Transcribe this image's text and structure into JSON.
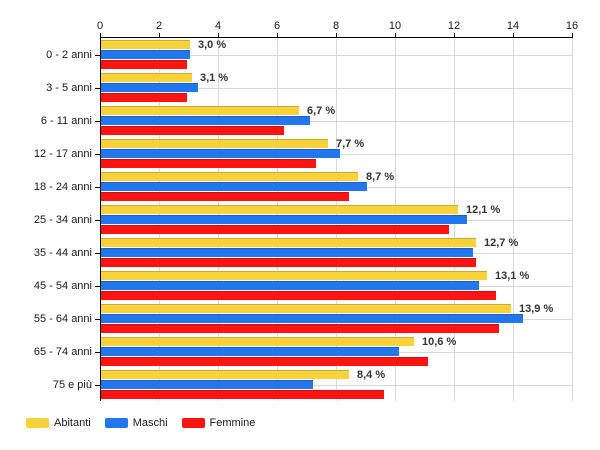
{
  "chart_data": {
    "type": "bar",
    "orientation": "horizontal",
    "title": "",
    "categories": [
      "0 - 2 anni",
      "3 - 5 anni",
      "6 - 11 anni",
      "12 - 17 anni",
      "18 - 24 anni",
      "25 - 34 anni",
      "35 - 44 anni",
      "45 - 54 anni",
      "55 - 64 anni",
      "65 - 74 anni",
      "75 e più"
    ],
    "series": [
      {
        "name": "Abitanti",
        "color": "#F8D23A",
        "values": [
          3.0,
          3.1,
          6.7,
          7.7,
          8.7,
          12.1,
          12.7,
          13.1,
          13.9,
          10.6,
          8.4
        ]
      },
      {
        "name": "Maschi",
        "color": "#2277EE",
        "values": [
          3.0,
          3.3,
          7.1,
          8.1,
          9.0,
          12.4,
          12.6,
          12.8,
          14.3,
          10.1,
          7.2
        ]
      },
      {
        "name": "Femmine",
        "color": "#FB1412",
        "values": [
          2.9,
          2.9,
          6.2,
          7.3,
          8.4,
          11.8,
          12.7,
          13.4,
          13.5,
          11.1,
          9.6
        ]
      }
    ],
    "data_labels": [
      "3,0 %",
      "3,1 %",
      "6,7 %",
      "7,7 %",
      "8,7 %",
      "12,1 %",
      "12,7 %",
      "13,1 %",
      "13,9 %",
      "10,6 %",
      "8,4 %"
    ],
    "data_labels_series": "Abitanti",
    "x_ticks": [
      0,
      2,
      4,
      6,
      8,
      10,
      12,
      14,
      16
    ],
    "xlim": [
      0,
      16
    ],
    "xlabel": "",
    "ylabel": "",
    "grid": true,
    "legend_position": "bottom"
  },
  "style": {
    "axis_color": "#000000",
    "grid_color": "#D9D9D9",
    "tick_text_color": "#1a1a1a",
    "data_label_color": "#333333",
    "background": "#ffffff"
  }
}
